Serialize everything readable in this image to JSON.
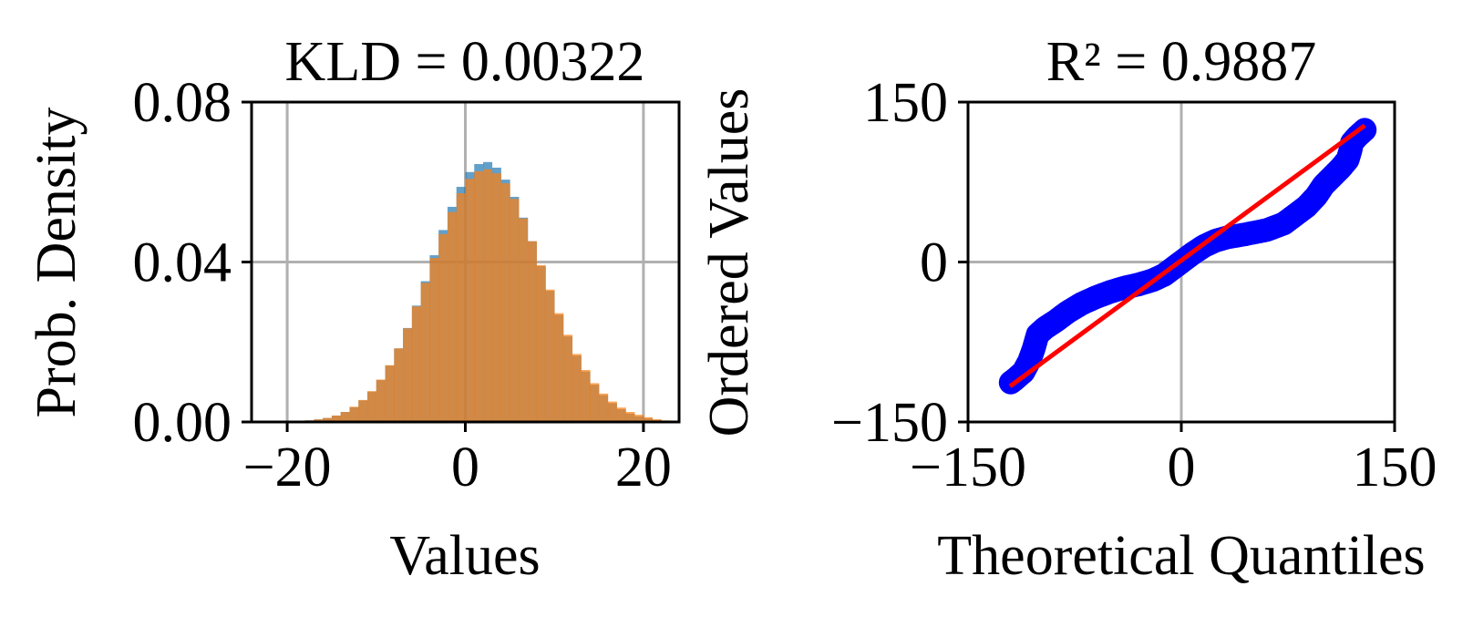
{
  "chart_data": [
    {
      "type": "bar",
      "subtype": "histogram",
      "title": "KLD = 0.00322",
      "xlabel": "Values",
      "ylabel": "Prob. Density",
      "xlim": [
        -24,
        24
      ],
      "ylim": [
        0,
        0.08
      ],
      "xticks": [
        -20,
        0,
        20
      ],
      "xtick_labels": [
        "−20",
        "0",
        "20"
      ],
      "yticks": [
        0,
        0.04,
        0.08
      ],
      "ytick_labels": [
        "0.00",
        "0.04",
        "0.08"
      ],
      "grid": true,
      "bin_width": 1,
      "bin_centers": [
        -19.5,
        -18.5,
        -17.5,
        -16.5,
        -15.5,
        -14.5,
        -13.5,
        -12.5,
        -11.5,
        -10.5,
        -9.5,
        -8.5,
        -7.5,
        -6.5,
        -5.5,
        -4.5,
        -3.5,
        -2.5,
        -1.5,
        -0.5,
        0.5,
        1.5,
        2.5,
        3.5,
        4.5,
        5.5,
        6.5,
        7.5,
        8.5,
        9.5,
        10.5,
        11.5,
        12.5,
        13.5,
        14.5,
        15.5,
        16.5,
        17.5,
        18.5,
        19.5,
        20.5,
        21.5,
        22.5,
        23.5
      ],
      "series": [
        {
          "color": "#1f77b4",
          "values": [
            0.00013,
            0.00023,
            0.0004,
            0.00065,
            0.001,
            0.0016,
            0.0025,
            0.0037,
            0.0054,
            0.0076,
            0.0105,
            0.0141,
            0.0184,
            0.0235,
            0.0291,
            0.0352,
            0.0417,
            0.048,
            0.0538,
            0.0588,
            0.0625,
            0.0645,
            0.065,
            0.0636,
            0.0606,
            0.0563,
            0.0511,
            0.0452,
            0.039,
            0.0328,
            0.0268,
            0.0214,
            0.0166,
            0.0126,
            0.0093,
            0.0067,
            0.0047,
            0.0032,
            0.0021,
            0.0014,
            0.0009,
            0.0005,
            0.0003,
            0.0002
          ]
        },
        {
          "color": "#ff7f0e",
          "values": [
            0.00013,
            0.00023,
            0.0004,
            0.00065,
            0.001,
            0.0016,
            0.0025,
            0.0038,
            0.0055,
            0.0077,
            0.0106,
            0.0142,
            0.0184,
            0.0234,
            0.0289,
            0.0348,
            0.041,
            0.047,
            0.0525,
            0.0572,
            0.0608,
            0.0627,
            0.0632,
            0.0622,
            0.0597,
            0.0558,
            0.0509,
            0.0452,
            0.0392,
            0.0331,
            0.0272,
            0.0218,
            0.017,
            0.013,
            0.0097,
            0.0071,
            0.0051,
            0.0036,
            0.0025,
            0.0018,
            0.0012,
            0.0007,
            0.0004,
            0.0002
          ]
        }
      ]
    },
    {
      "type": "scatter",
      "subtype": "qq-plot",
      "title": "R² = 0.9887",
      "xlabel": "Theoretical Quantiles",
      "ylabel": "Ordered Values",
      "xlim": [
        -150,
        150
      ],
      "ylim": [
        -150,
        150
      ],
      "xticks": [
        -150,
        0,
        150
      ],
      "xtick_labels": [
        "−150",
        "0",
        "150"
      ],
      "yticks": [
        -150,
        0,
        150
      ],
      "ytick_labels": [
        "−150",
        "0",
        "150"
      ],
      "grid": true,
      "points_color": "#0000ff",
      "points": [
        [
          -120,
          -113
        ],
        [
          -117,
          -110
        ],
        [
          -111,
          -103
        ],
        [
          -107,
          -93
        ],
        [
          -104,
          -82
        ],
        [
          -101,
          -68
        ],
        [
          -96,
          -62
        ],
        [
          -88,
          -55
        ],
        [
          -80,
          -47
        ],
        [
          -70,
          -39
        ],
        [
          -60,
          -33
        ],
        [
          -50,
          -28
        ],
        [
          -40,
          -24
        ],
        [
          -30,
          -21
        ],
        [
          -20,
          -17
        ],
        [
          -12,
          -12
        ],
        [
          -5,
          -5
        ],
        [
          0,
          0
        ],
        [
          8,
          8
        ],
        [
          16,
          15
        ],
        [
          24,
          20
        ],
        [
          32,
          23
        ],
        [
          45,
          26
        ],
        [
          60,
          30
        ],
        [
          72,
          36
        ],
        [
          80,
          44
        ],
        [
          88,
          52
        ],
        [
          95,
          62
        ],
        [
          100,
          72
        ],
        [
          106,
          80
        ],
        [
          112,
          88
        ],
        [
          117,
          96
        ],
        [
          119,
          105
        ],
        [
          120,
          112
        ],
        [
          124,
          118
        ],
        [
          129,
          124
        ]
      ],
      "fit_line": {
        "color": "#ff0000",
        "from": [
          -120.5,
          -116.6
        ],
        "to": [
          129,
          128
        ]
      }
    }
  ]
}
